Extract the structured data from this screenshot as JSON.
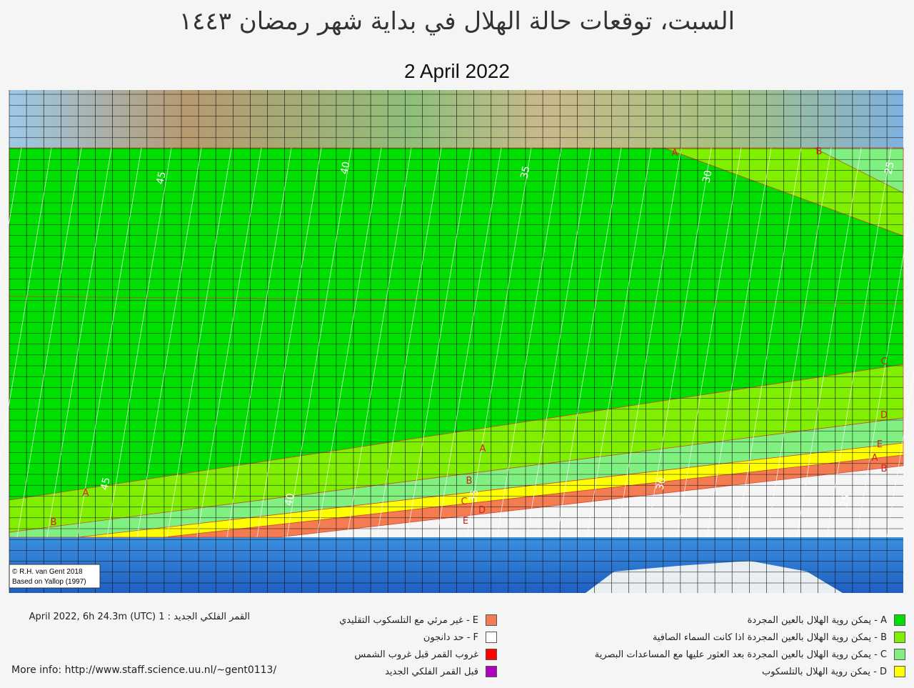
{
  "header": {
    "title": "السبت، توقعات حالة الهلال في بداية شهر رمضان ١٤٤٣",
    "date": "2 April 2022"
  },
  "map": {
    "credit": [
      "© R.H. van Gent 2018",
      "Based on Yallop (1997)"
    ],
    "contour_labels": [
      "45",
      "40",
      "35",
      "30",
      "25",
      "45",
      "40",
      "35",
      "30",
      "25"
    ],
    "zone_labels": [
      "A",
      "B",
      "A",
      "B",
      "C",
      "D",
      "E",
      "A",
      "B",
      "C",
      "D",
      "E",
      "A",
      "B"
    ]
  },
  "legend": {
    "new_moon": "القمر الفلكي الجديد : 1 April 2022, 6h 24.3m (UTC)",
    "more_info": "More info: http://www.staff.science.uu.nl/~gent0113/",
    "middle": [
      {
        "label": "E - غير مرئي مع التلسكوب التقليدي",
        "color": "#f47c52"
      },
      {
        "label": "F - حد دانجون",
        "color": "#ffffff"
      },
      {
        "label": "غروب القمر قبل غروب الشمس",
        "color": "#ff0000"
      },
      {
        "label": "قبل القمر  الفلكي الجديد",
        "color": "#b000c0"
      }
    ],
    "right": [
      {
        "label": "A - يمكن روية الهلال بالعين المجردة",
        "color": "#00e000"
      },
      {
        "label": "B - يمكن روية الهلال بالعين المجردة اذا كانت السماء الصافية",
        "color": "#80f000"
      },
      {
        "label": "C - يمكن روية الهلال بالعين المجردة بعد العثور عليها مع المساعدات البصرية",
        "color": "#80f080"
      },
      {
        "label": "D - يمكن روية الهلال بالتلسكوب",
        "color": "#ffff00"
      }
    ]
  }
}
